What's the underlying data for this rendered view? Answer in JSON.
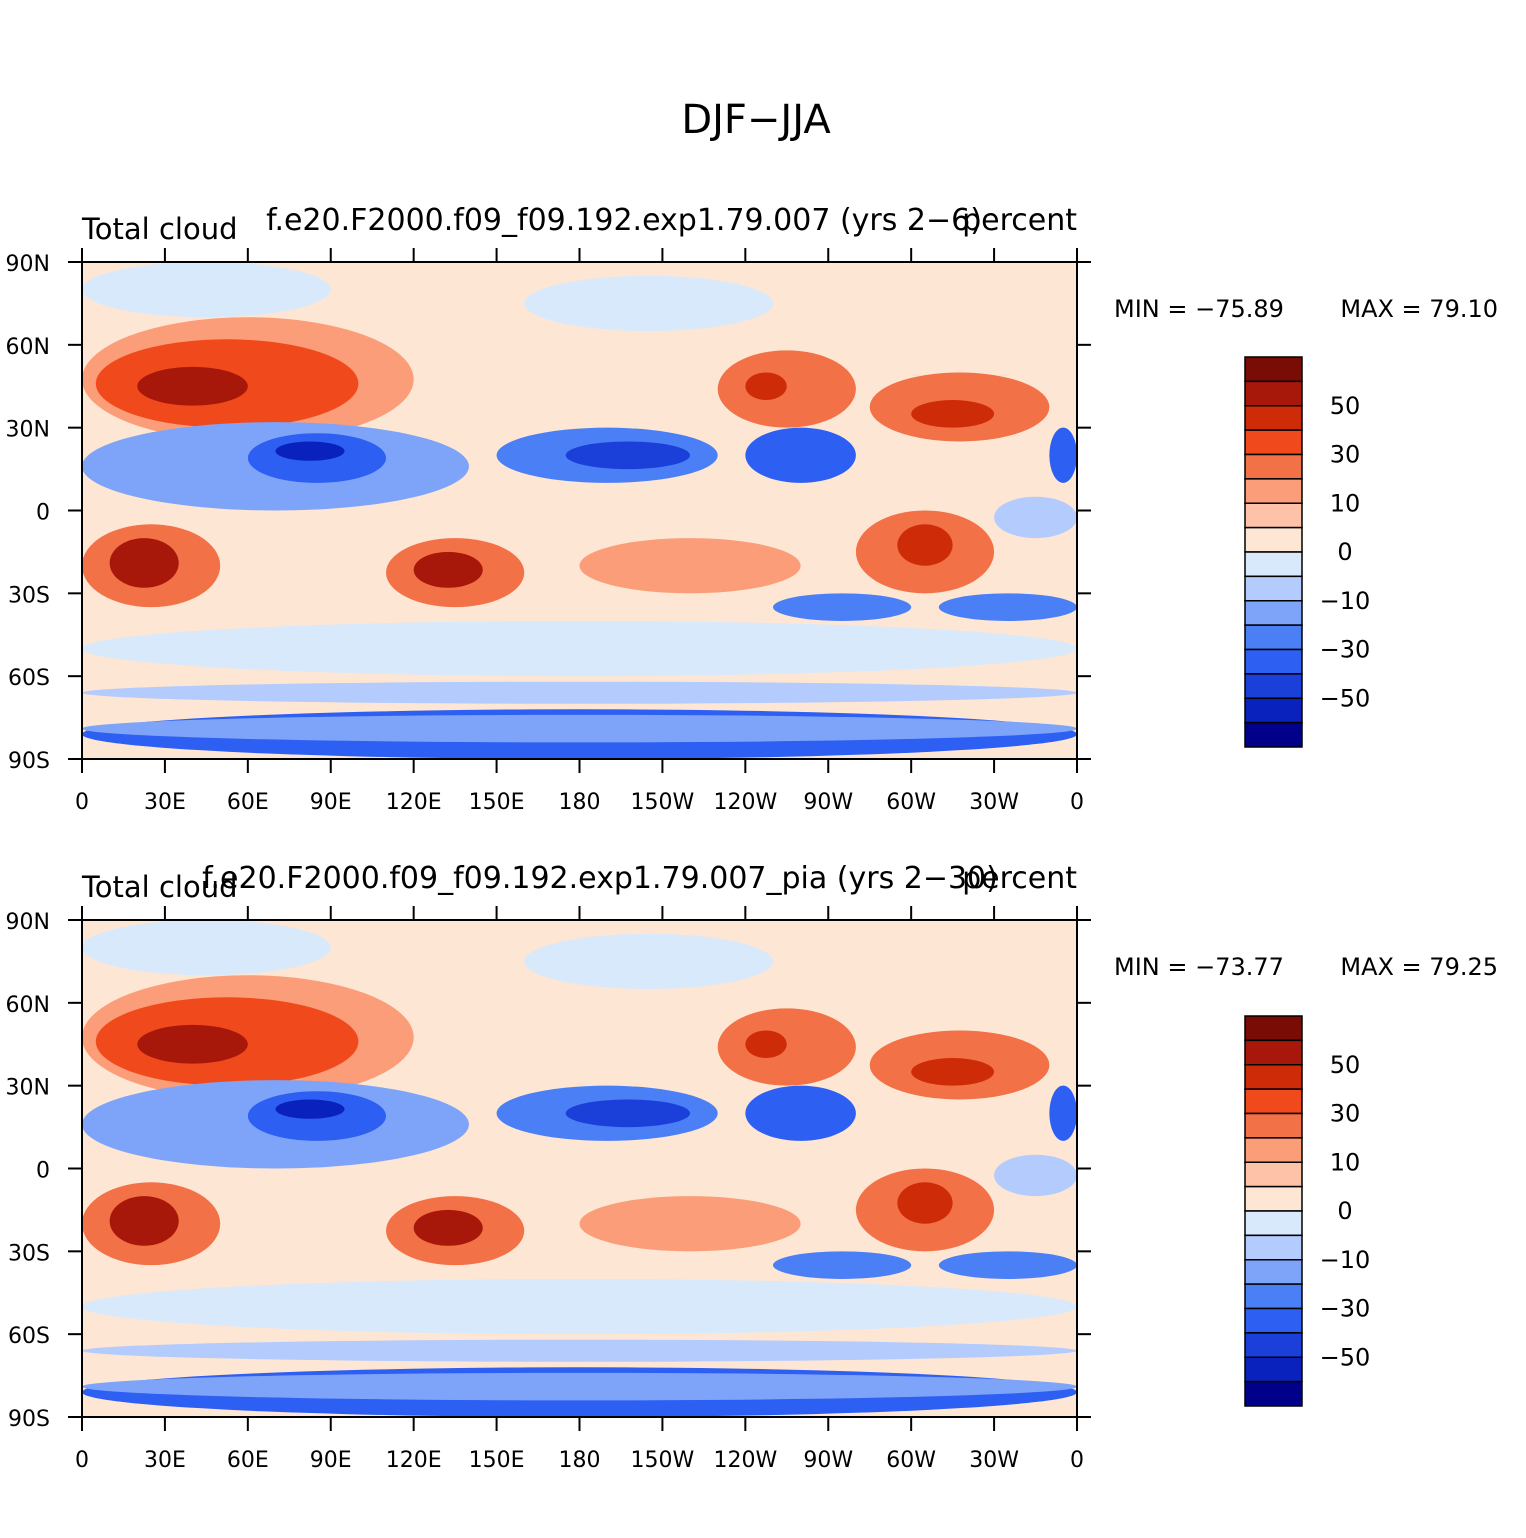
{
  "page_title": "DJF−JJA",
  "chart_data": [
    {
      "type": "heatmap",
      "title": "f.e20.F2000.f09_f09.192.exp1.79.007 (yrs 2−6)",
      "left_label": "Total cloud",
      "units": "percent",
      "min_label": "MIN = −75.89",
      "max_label": "MAX =   79.10",
      "min": -75.89,
      "max": 79.1,
      "lon_range": [
        0,
        360
      ],
      "lat_range": [
        -90,
        90
      ],
      "xticks": [
        "0",
        "30E",
        "60E",
        "90E",
        "120E",
        "150E",
        "180",
        "150W",
        "120W",
        "90W",
        "60W",
        "30W",
        "0"
      ],
      "yticks": [
        "90N",
        "60N",
        "30N",
        "0",
        "30S",
        "60S",
        "90S"
      ]
    },
    {
      "type": "heatmap",
      "title": "f.e20.F2000.f09_f09.192.exp1.79.007_pia (yrs 2−30)",
      "left_label": "Total cloud",
      "units": "percent",
      "min_label": "MIN = −73.77",
      "max_label": "MAX =   79.25",
      "min": -73.77,
      "max": 79.25,
      "lon_range": [
        0,
        360
      ],
      "lat_range": [
        -90,
        90
      ],
      "xticks": [
        "0",
        "30E",
        "60E",
        "90E",
        "120E",
        "150E",
        "180",
        "150W",
        "120W",
        "90W",
        "60W",
        "30W",
        "0"
      ],
      "yticks": [
        "90N",
        "60N",
        "30N",
        "0",
        "30S",
        "60S",
        "90S"
      ]
    }
  ],
  "colorbar": {
    "levels": [
      -60,
      -50,
      -40,
      -30,
      -20,
      -10,
      -5,
      0,
      5,
      10,
      20,
      30,
      40,
      50,
      60
    ],
    "colors": [
      "#00008b",
      "#0a22bd",
      "#1b3fd9",
      "#2d5ff2",
      "#4a7ff6",
      "#7ea4f9",
      "#b3cbfd",
      "#d8e9fc",
      "#fde6d3",
      "#fdc2a8",
      "#fa9d78",
      "#f37147",
      "#f04a1c",
      "#ce2c08",
      "#a8180a",
      "#7a0c06"
    ],
    "labels": [
      "50",
      "30",
      "10",
      "0",
      "−10",
      "−30",
      "−50"
    ]
  }
}
